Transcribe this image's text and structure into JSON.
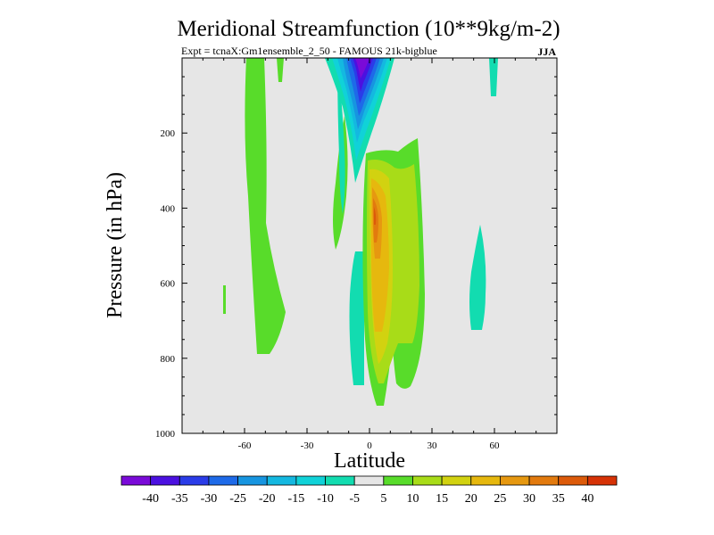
{
  "chart_data": {
    "type": "contour",
    "title": "Meridional Streamfunction (10**9kg/m-2)",
    "subtitle": "Expt = tcnaX:Gm1ensemble_2_50 - FAMOUS 21k-bigblue",
    "season": "JJA",
    "xlabel": "Latitude",
    "ylabel": "Pressure (in hPa)",
    "xlim": [
      -90,
      90
    ],
    "ylim": [
      1000,
      0
    ],
    "xticks": [
      -60,
      -30,
      0,
      30,
      60
    ],
    "xtick_labels": [
      "-60",
      "-30",
      "0",
      "30",
      "60"
    ],
    "yticks": [
      200,
      400,
      600,
      800,
      1000
    ],
    "ytick_labels": [
      "200",
      "400",
      "600",
      "800",
      "1000"
    ],
    "colorbar": {
      "levels": [
        -40,
        -35,
        -30,
        -25,
        -20,
        -15,
        -10,
        -5,
        5,
        10,
        15,
        20,
        25,
        30,
        35,
        40
      ],
      "labels": [
        "-40",
        "-35",
        "-30",
        "-25",
        "-20",
        "-15",
        "-10",
        "-5",
        "5",
        "10",
        "15",
        "20",
        "25",
        "30",
        "35",
        "40"
      ],
      "colors": [
        "#7a0ad8",
        "#4b10e0",
        "#2a3ce8",
        "#1e6ae8",
        "#1795e0",
        "#14b8e0",
        "#10d2d8",
        "#12dcb0",
        "#e6e6e6",
        "#58dc2a",
        "#a8dc18",
        "#d2d210",
        "#e6b80e",
        "#e69810",
        "#e27a0e",
        "#dc5a0a",
        "#d63206"
      ]
    },
    "background": "#e6e6e6",
    "regions": [
      {
        "name": "upper-tropical-negative-cell",
        "min_value": -40,
        "lat_range": [
          -10,
          5
        ],
        "p_range": [
          0,
          300
        ]
      },
      {
        "name": "tropical-positive-cell",
        "max_value": 35,
        "lat_range": [
          0,
          25
        ],
        "p_range": [
          220,
          930
        ]
      },
      {
        "name": "southern-midlat-weak-positive",
        "value": 5,
        "lat_range": [
          -55,
          -35
        ],
        "p_range": [
          0,
          790
        ]
      },
      {
        "name": "southern-tropics-weak-negative",
        "value": -5,
        "lat_range": [
          -8,
          0
        ],
        "p_range": [
          510,
          870
        ]
      },
      {
        "name": "northern-midlat-weak-negative",
        "value": -5,
        "lat_range": [
          45,
          55
        ],
        "p_range": [
          450,
          740
        ]
      }
    ]
  }
}
